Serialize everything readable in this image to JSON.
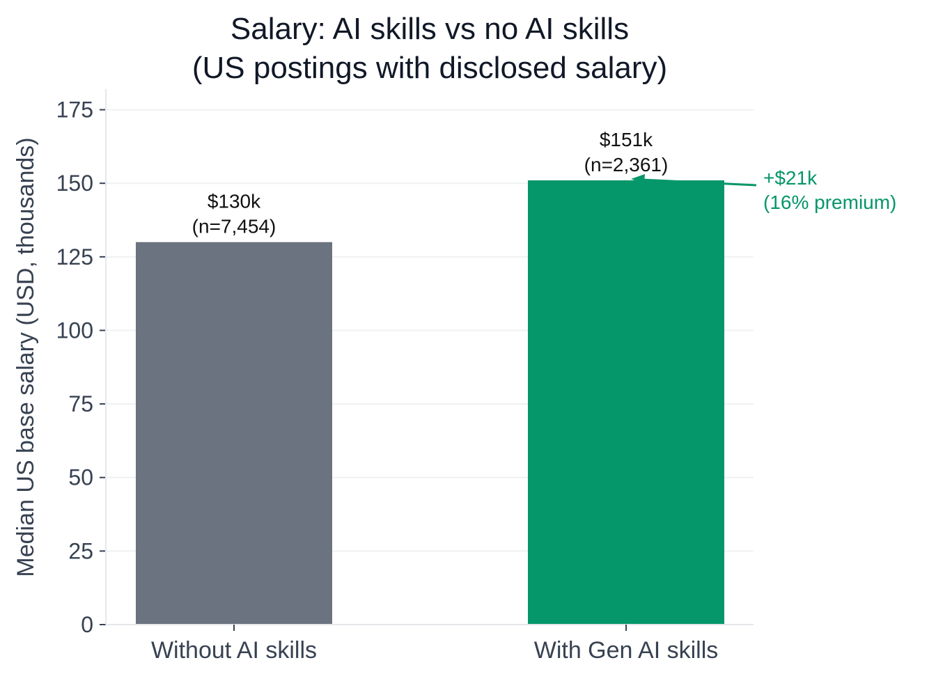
{
  "chart_data": {
    "type": "bar",
    "title": [
      "Salary: AI skills vs no AI skills",
      "(US postings with disclosed salary)"
    ],
    "xlabel": "",
    "ylabel": "Median US base salary (USD, thousands)",
    "categories": [
      "Without AI skills",
      "With Gen AI skills"
    ],
    "values": [
      130,
      151
    ],
    "value_labels": [
      [
        "$130k",
        "(n=7,454)"
      ],
      [
        "$151k",
        "(n=2,361)"
      ]
    ],
    "bar_colors": [
      "#6b7280",
      "#059669"
    ],
    "ylim": [
      0,
      182
    ],
    "yticks": [
      0,
      25,
      50,
      75,
      100,
      125,
      150,
      175
    ],
    "grid": "horizontal",
    "annotation": {
      "lines": [
        "+$21k",
        "(16% premium)"
      ],
      "color": "#059669",
      "points_to_category": 1,
      "points_to_value": 151
    }
  }
}
